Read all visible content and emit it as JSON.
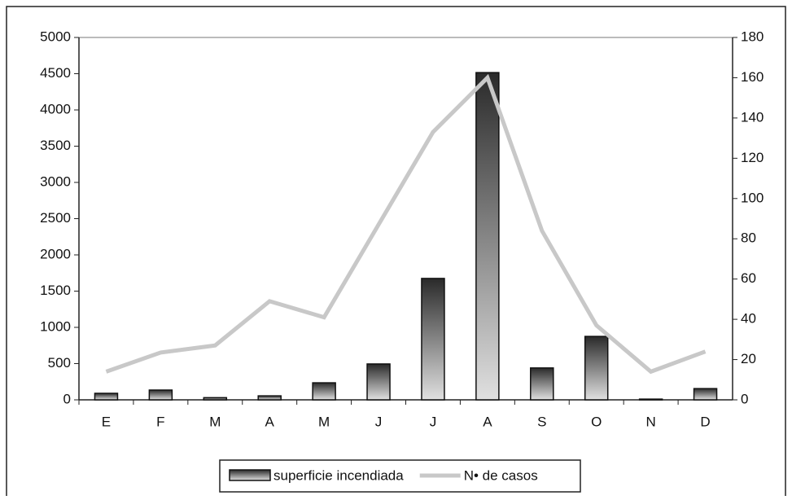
{
  "chart_data": {
    "type": "bar-line",
    "categories": [
      "E",
      "F",
      "M",
      "A",
      "M",
      "J",
      "J",
      "A",
      "S",
      "O",
      "N",
      "D"
    ],
    "series": [
      {
        "name": "superficie incendiada",
        "type": "bar",
        "color": "#2a2a2a",
        "values": [
          90,
          135,
          30,
          55,
          235,
          495,
          1675,
          4515,
          440,
          875,
          10,
          155
        ]
      },
      {
        "name": "N• de casos",
        "type": "line",
        "axis": "y2",
        "color": "#c8c8c8",
        "values": [
          14,
          23.5,
          27,
          49,
          41,
          87,
          133,
          160,
          84,
          37,
          14,
          24
        ]
      }
    ],
    "ylim": [
      0,
      5000
    ],
    "yticks": [
      0,
      500,
      1000,
      1500,
      2000,
      2500,
      3000,
      3500,
      4000,
      4500,
      5000
    ],
    "y2lim": [
      0,
      180
    ],
    "y2ticks": [
      0,
      20,
      40,
      60,
      80,
      100,
      120,
      140,
      160,
      180
    ],
    "legend": "bottom"
  }
}
